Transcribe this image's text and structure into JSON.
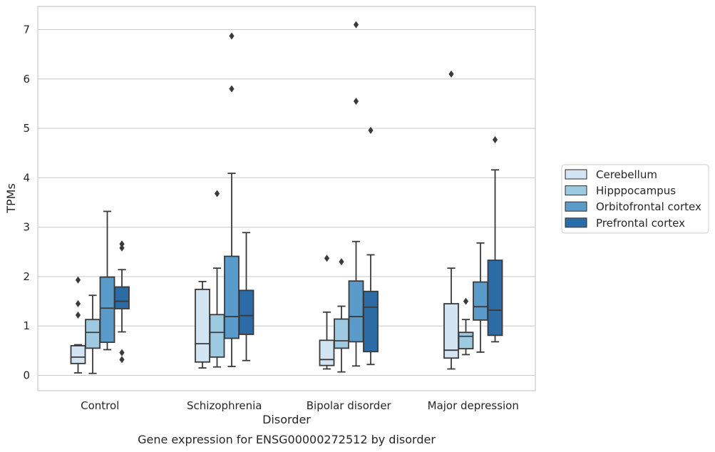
{
  "chart_data": {
    "type": "box",
    "title": "",
    "caption": "Gene expression for ENSG00000272512 by disorder",
    "xlabel": "Disorder",
    "ylabel": "TPMs",
    "ylim": [
      -0.3,
      7.47
    ],
    "yticks": [
      0,
      1,
      2,
      3,
      4,
      5,
      6,
      7
    ],
    "grid": true,
    "legend_position": "center-right outside",
    "categories": [
      "Control",
      "Schizophrenia",
      "Bipolar disorder",
      "Major depression"
    ],
    "series": [
      {
        "name": "Cerebellum",
        "color": "#d3e4f3",
        "boxes": [
          {
            "whislo": 0.05,
            "q1": 0.24,
            "med": 0.37,
            "q3": 0.6,
            "whishi": 0.62,
            "fliers": [
              1.93,
              1.45,
              1.22
            ]
          },
          {
            "whislo": 0.15,
            "q1": 0.27,
            "med": 0.64,
            "q3": 1.74,
            "whishi": 1.9,
            "fliers": []
          },
          {
            "whislo": 0.13,
            "q1": 0.2,
            "med": 0.32,
            "q3": 0.71,
            "whishi": 1.28,
            "fliers": [
              2.37
            ]
          },
          {
            "whislo": 0.13,
            "q1": 0.35,
            "med": 0.51,
            "q3": 1.45,
            "whishi": 2.17,
            "fliers": [
              6.1
            ]
          }
        ]
      },
      {
        "name": "Hipppocampus",
        "color": "#9ecae1",
        "boxes": [
          {
            "whislo": 0.04,
            "q1": 0.55,
            "med": 0.87,
            "q3": 1.13,
            "whishi": 1.62,
            "fliers": []
          },
          {
            "whislo": 0.17,
            "q1": 0.37,
            "med": 0.87,
            "q3": 1.23,
            "whishi": 2.17,
            "fliers": [
              3.68
            ]
          },
          {
            "whislo": 0.07,
            "q1": 0.55,
            "med": 0.7,
            "q3": 1.14,
            "whishi": 1.4,
            "fliers": [
              2.3
            ]
          },
          {
            "whislo": 0.42,
            "q1": 0.54,
            "med": 0.79,
            "q3": 0.87,
            "whishi": 1.13,
            "fliers": [
              1.5
            ]
          }
        ]
      },
      {
        "name": "Orbitofrontal cortex",
        "color": "#5a9bc9",
        "boxes": [
          {
            "whislo": 0.52,
            "q1": 0.67,
            "med": 1.36,
            "q3": 1.99,
            "whishi": 3.32,
            "fliers": []
          },
          {
            "whislo": 0.18,
            "q1": 0.75,
            "med": 1.19,
            "q3": 2.41,
            "whishi": 4.09,
            "fliers": [
              6.87,
              5.8
            ]
          },
          {
            "whislo": 0.19,
            "q1": 0.68,
            "med": 1.19,
            "q3": 1.91,
            "whishi": 2.71,
            "fliers": [
              7.1,
              5.55
            ]
          },
          {
            "whislo": 0.47,
            "q1": 1.12,
            "med": 1.39,
            "q3": 1.89,
            "whishi": 2.68,
            "fliers": []
          }
        ]
      },
      {
        "name": "Prefrontal cortex",
        "color": "#2b6ba6",
        "boxes": [
          {
            "whislo": 0.88,
            "q1": 1.35,
            "med": 1.5,
            "q3": 1.79,
            "whishi": 2.14,
            "fliers": [
              2.66,
              2.58,
              0.46,
              0.32
            ]
          },
          {
            "whislo": 0.3,
            "q1": 0.83,
            "med": 1.21,
            "q3": 1.72,
            "whishi": 2.89,
            "fliers": []
          },
          {
            "whislo": 0.22,
            "q1": 0.48,
            "med": 1.38,
            "q3": 1.7,
            "whishi": 2.44,
            "fliers": [
              4.96
            ]
          },
          {
            "whislo": 0.68,
            "q1": 0.81,
            "med": 1.32,
            "q3": 2.33,
            "whishi": 4.16,
            "fliers": [
              4.77
            ]
          }
        ]
      }
    ]
  }
}
